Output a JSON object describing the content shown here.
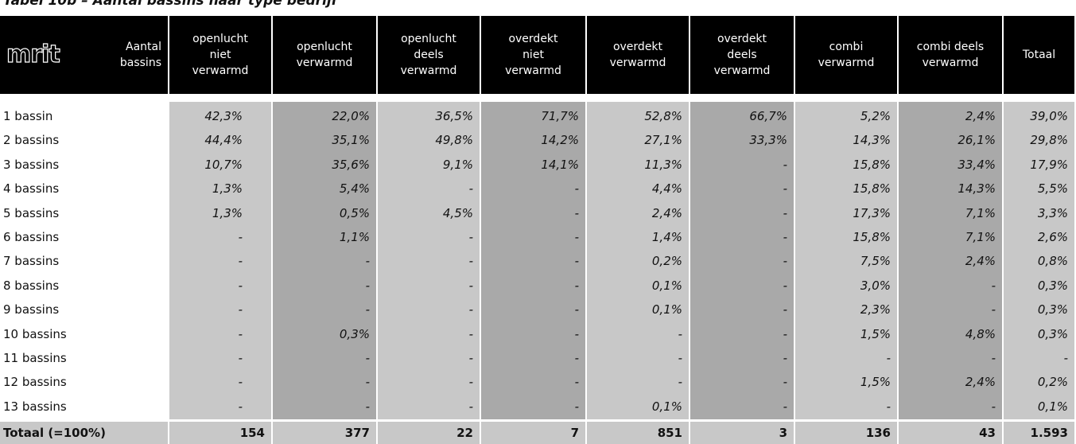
{
  "title": "Tabel 10b – Aantal bassins naar type bedrijf",
  "table": {
    "logo": "mrit",
    "corner": "Aantal\nbassins",
    "columns": [
      "openlucht\nniet\nverwarmd",
      "openlucht\nverwarmd",
      "openlucht\ndeels\nverwarmd",
      "overdekt\nniet\nverwarmd",
      "overdekt\nverwarmd",
      "overdekt\ndeels\nverwarmd",
      "combi\nverwarmd",
      "combi deels\nverwarmd",
      "Totaal"
    ],
    "rows": [
      [
        "1 bassin",
        "42,3%",
        "22,0%",
        "36,5%",
        "71,7%",
        "52,8%",
        "66,7%",
        "5,2%",
        "2,4%",
        "39,0%"
      ],
      [
        "2 bassins",
        "44,4%",
        "35,1%",
        "49,8%",
        "14,2%",
        "27,1%",
        "33,3%",
        "14,3%",
        "26,1%",
        "29,8%"
      ],
      [
        "3 bassins",
        "10,7%",
        "35,6%",
        "9,1%",
        "14,1%",
        "11,3%",
        "-",
        "15,8%",
        "33,4%",
        "17,9%"
      ],
      [
        "4 bassins",
        "1,3%",
        "5,4%",
        "-",
        "-",
        "4,4%",
        "-",
        "15,8%",
        "14,3%",
        "5,5%"
      ],
      [
        "5 bassins",
        "1,3%",
        "0,5%",
        "4,5%",
        "-",
        "2,4%",
        "-",
        "17,3%",
        "7,1%",
        "3,3%"
      ],
      [
        "6 bassins",
        "-",
        "1,1%",
        "-",
        "-",
        "1,4%",
        "-",
        "15,8%",
        "7,1%",
        "2,6%"
      ],
      [
        "7 bassins",
        "-",
        "-",
        "-",
        "-",
        "0,2%",
        "-",
        "7,5%",
        "2,4%",
        "0,8%"
      ],
      [
        "8 bassins",
        "-",
        "-",
        "-",
        "-",
        "0,1%",
        "-",
        "3,0%",
        "-",
        "0,3%"
      ],
      [
        "9 bassins",
        "-",
        "-",
        "-",
        "-",
        "0,1%",
        "-",
        "2,3%",
        "-",
        "0,3%"
      ],
      [
        "10 bassins",
        "-",
        "0,3%",
        "-",
        "-",
        "-",
        "-",
        "1,5%",
        "4,8%",
        "0,3%"
      ],
      [
        "11 bassins",
        "-",
        "-",
        "-",
        "-",
        "-",
        "-",
        "-",
        "-",
        "-"
      ],
      [
        "12 bassins",
        "-",
        "-",
        "-",
        "-",
        "-",
        "-",
        "1,5%",
        "2,4%",
        "0,2%"
      ],
      [
        "13 bassins",
        "-",
        "-",
        "-",
        "-",
        "0,1%",
        "-",
        "-",
        "-",
        "0,1%"
      ]
    ],
    "total": [
      "Totaal (=100%)",
      "154",
      "377",
      "22",
      "7",
      "851",
      "3",
      "136",
      "43",
      "1.593"
    ]
  }
}
